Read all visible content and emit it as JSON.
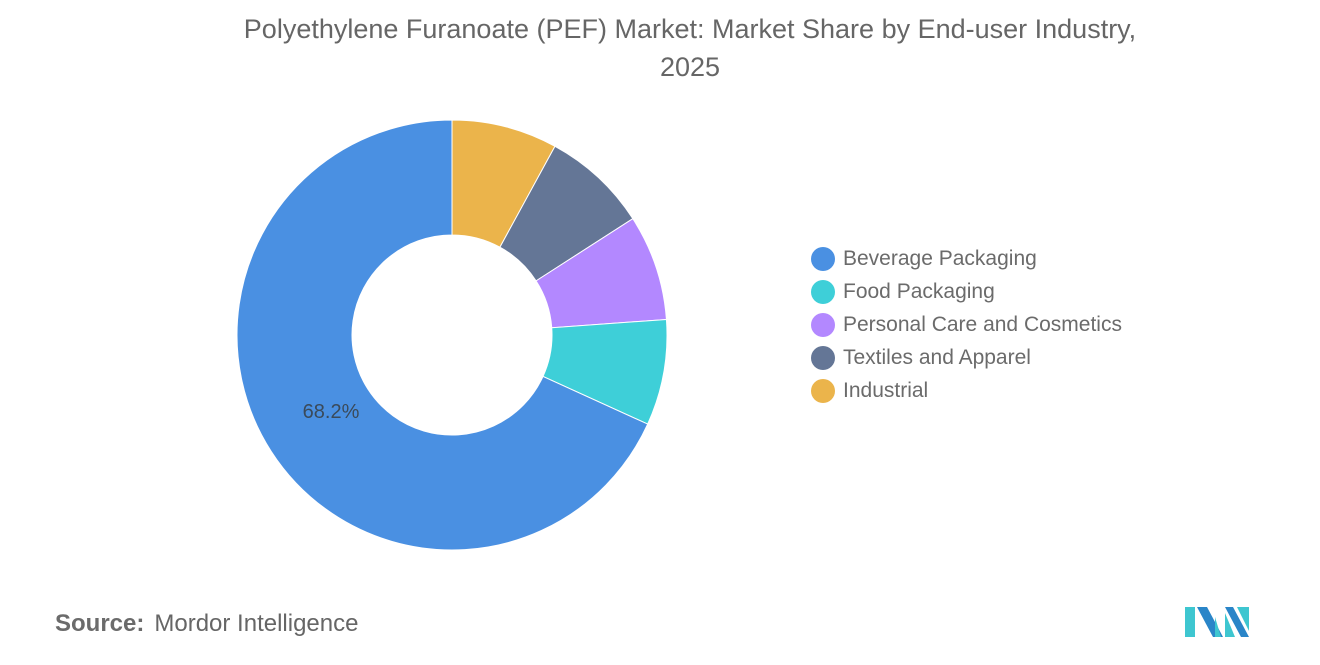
{
  "title_line1": "Polyethylene Furanoate (PEF) Market: Market Share by End-user Industry,",
  "title_line2": "2025",
  "source": {
    "key": "Source:",
    "value": "Mordor Intelligence"
  },
  "legend": [
    {
      "label": "Beverage Packaging",
      "color": "#4a90e2"
    },
    {
      "label": "Food Packaging",
      "color": "#3ecfd8"
    },
    {
      "label": "Personal Care and Cosmetics",
      "color": "#b388ff"
    },
    {
      "label": "Textiles and Apparel",
      "color": "#647696"
    },
    {
      "label": "Industrial",
      "color": "#ebb44b"
    }
  ],
  "data_label": "68.2%",
  "logo_name": "mordor-intelligence-logo",
  "chart_data": {
    "type": "pie",
    "variant": "donut",
    "title": "Polyethylene Furanoate (PEF) Market: Market Share by End-user Industry, 2025",
    "categories": [
      "Beverage Packaging",
      "Food Packaging",
      "Personal Care and Cosmetics",
      "Textiles and Apparel",
      "Industrial"
    ],
    "values": [
      68.2,
      7.95,
      7.95,
      7.95,
      7.95
    ],
    "unit": "%",
    "colors": [
      "#4a90e2",
      "#3ecfd8",
      "#b388ff",
      "#647696",
      "#ebb44b"
    ],
    "annotations": [
      {
        "category": "Beverage Packaging",
        "text": "68.2%"
      }
    ],
    "legend_position": "right",
    "xlabel": "",
    "ylabel": ""
  }
}
